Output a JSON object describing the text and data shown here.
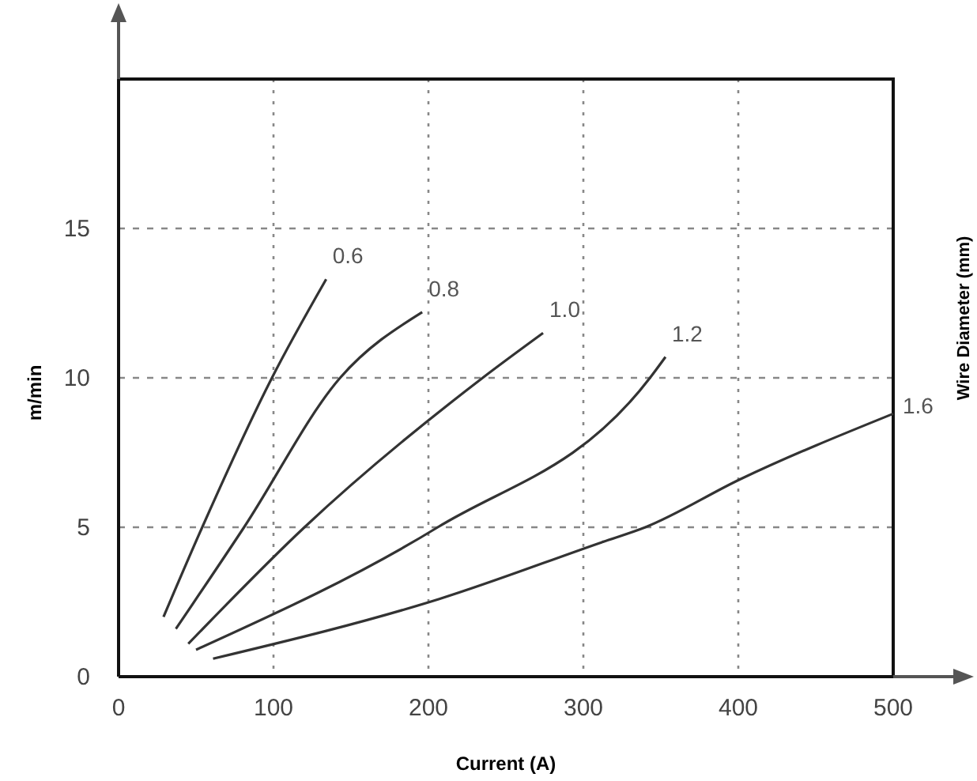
{
  "chart_data": {
    "type": "line",
    "xlabel": "Current (A)",
    "ylabel": "m/min",
    "legend_title": "Wire Diameter (mm)",
    "xlim": [
      0,
      500
    ],
    "ylim": [
      0,
      20
    ],
    "xticks": [
      0,
      100,
      200,
      300,
      400,
      500
    ],
    "yticks": [
      0,
      5,
      10,
      15
    ],
    "grid": true,
    "line_style": "solid",
    "marker": "none",
    "series": [
      {
        "name": "0.6",
        "color": "#333333",
        "x": [
          29,
          54,
          99,
          134
        ],
        "values": [
          2.0,
          5,
          10,
          13.3
        ]
      },
      {
        "name": "0.8",
        "color": "#333333",
        "x": [
          37,
          81,
          143,
          196
        ],
        "values": [
          1.6,
          5,
          10,
          12.2
        ]
      },
      {
        "name": "1.0",
        "color": "#333333",
        "x": [
          45,
          120,
          235,
          274
        ],
        "values": [
          1.1,
          5,
          10,
          11.5
        ]
      },
      {
        "name": "1.2",
        "color": "#333333",
        "x": [
          50,
          206,
          343,
          353
        ],
        "values": [
          0.9,
          5,
          10,
          10.7
        ]
      },
      {
        "name": "1.6",
        "color": "#333333",
        "x": [
          61,
          207,
          312,
          340,
          401,
          500
        ],
        "values": [
          0.6,
          2.6,
          4.5,
          5,
          6.6,
          8.8
        ]
      }
    ]
  }
}
